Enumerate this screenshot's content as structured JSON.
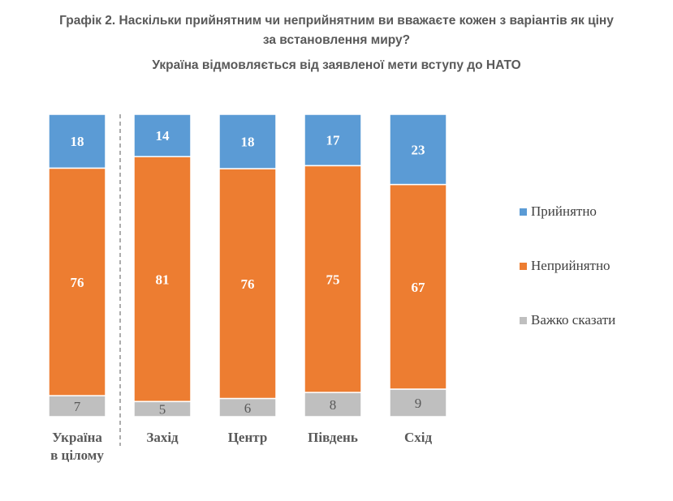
{
  "title_line1": "Графік 2. Наскільки прийнятним чи неприйнятним ви вважаєте кожен з варіантів як ціну",
  "title_line2": "за встановлення миру?",
  "subtitle": "Україна відмовляється від заявленої мети вступу до НАТО",
  "chart_data": {
    "type": "bar",
    "stacked": true,
    "orientation": "vertical",
    "categories": [
      [
        "Україна",
        "в цілому"
      ],
      [
        "Захід"
      ],
      [
        "Центр"
      ],
      [
        "Південь"
      ],
      [
        "Схід"
      ]
    ],
    "series": [
      {
        "name": "Прийнятно",
        "color": "#5B9BD5",
        "values": [
          18,
          14,
          18,
          17,
          23
        ]
      },
      {
        "name": "Неприйнятно",
        "color": "#ED7D31",
        "values": [
          76,
          81,
          76,
          75,
          67
        ]
      },
      {
        "name": "Важко сказати",
        "color": "#BFBFBF",
        "values": [
          7,
          5,
          6,
          8,
          9
        ]
      }
    ],
    "legend_position": "right",
    "grid": false,
    "separator_after_first_category": true
  }
}
